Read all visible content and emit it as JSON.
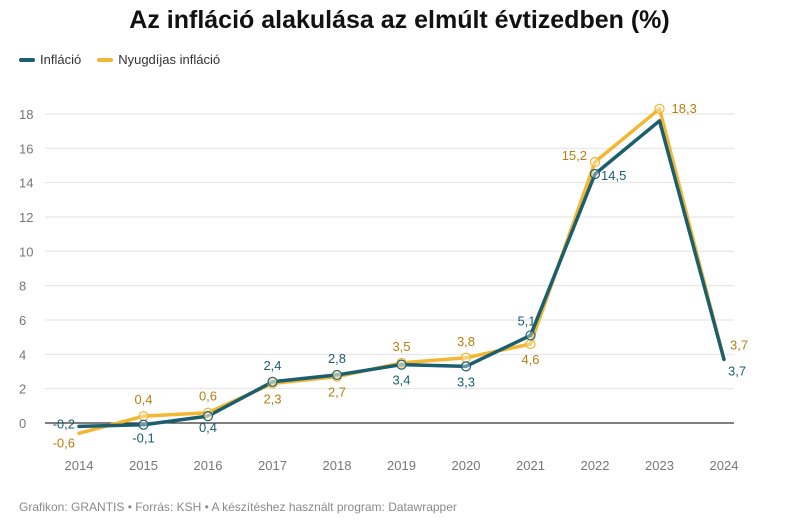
{
  "title": "Az infláció alakulása az elmúlt évtizedben (%)",
  "footer": "Grafikon: GRANTIS • Forrás: KSH • A készítéshez használt program: Datawrapper",
  "colors": {
    "inflacio": "#1b5e6e",
    "nyugdijas": "#f2b733",
    "grid": "#e2e2e2",
    "zero": "#333333"
  },
  "chart_data": {
    "type": "line",
    "x": [
      "2014",
      "2015",
      "2016",
      "2017",
      "2018",
      "2019",
      "2020",
      "2021",
      "2022",
      "2023",
      "2024"
    ],
    "y_ticks": [
      0,
      2,
      4,
      6,
      8,
      10,
      12,
      14,
      16,
      18
    ],
    "ylim": [
      -1,
      19
    ],
    "grid": true,
    "legend_position": "top-left",
    "series": [
      {
        "name": "Infláció",
        "color": "#1b5e6e",
        "values": [
          -0.2,
          -0.1,
          0.4,
          2.4,
          2.8,
          3.4,
          3.3,
          5.1,
          14.5,
          17.6,
          3.7
        ],
        "labels": [
          "-0,2",
          "-0,1",
          "0,4",
          "2,4",
          "2,8",
          "3,4",
          "3,3",
          "5,1",
          "14,5",
          null,
          "3,7"
        ]
      },
      {
        "name": "Nyugdíjas infláció",
        "color": "#f2b733",
        "values": [
          -0.6,
          0.4,
          0.6,
          2.3,
          2.7,
          3.5,
          3.8,
          4.6,
          15.2,
          18.3,
          3.7
        ],
        "labels": [
          "-0,6",
          "0,4",
          "0,6",
          "2,3",
          "2,7",
          "3,5",
          "3,8",
          "4,6",
          "15,2",
          "18,3",
          "3,7"
        ]
      }
    ]
  }
}
